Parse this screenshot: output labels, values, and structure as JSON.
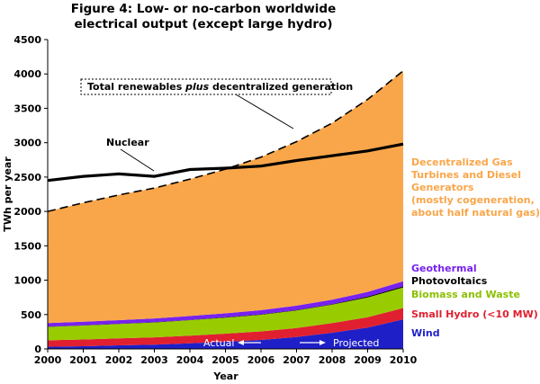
{
  "chart_data": {
    "type": "area",
    "title": [
      "Figure 4: Low- or no-carbon worldwide",
      "electrical output (except large hydro)"
    ],
    "xlabel": "Year",
    "ylabel": "TWh per year",
    "x": [
      2000,
      2001,
      2002,
      2003,
      2004,
      2005,
      2006,
      2007,
      2008,
      2009,
      2010
    ],
    "xlim": [
      2000,
      2010
    ],
    "ylim": [
      0,
      4500
    ],
    "yticks": [
      0,
      500,
      1000,
      1500,
      2000,
      2500,
      3000,
      3500,
      4000,
      4500
    ],
    "grid": false,
    "stacked_series": [
      {
        "name": "Wind",
        "color": "#1f1fc8",
        "label_lines": [
          "Wind"
        ],
        "values": [
          31,
          39,
          52,
          63,
          82,
          104,
          131,
          173,
          235,
          310,
          430
        ]
      },
      {
        "name": "Small Hydro (<10 MW)",
        "color": "#e02030",
        "label_lines": [
          "Small Hydro (<10 MW)"
        ],
        "values": [
          95,
          99,
          102,
          106,
          112,
          118,
          124,
          132,
          140,
          152,
          165
        ]
      },
      {
        "name": "Biomass and Waste",
        "color": "#99cc00",
        "label_lines": [
          "Biomass and Waste"
        ],
        "values": [
          195,
          202,
          208,
          216,
          224,
          232,
          242,
          254,
          268,
          288,
          300
        ]
      },
      {
        "name": "Photovoltaics",
        "color": "#000000",
        "label_lines": [
          "Photovoltaics"
        ],
        "values": [
          4,
          4,
          4,
          5,
          5,
          6,
          7,
          8,
          9,
          12,
          15
        ]
      },
      {
        "name": "Geothermal",
        "color": "#7722ee",
        "label_lines": [
          "Geothermal"
        ],
        "values": [
          50,
          52,
          53,
          54,
          56,
          58,
          60,
          62,
          64,
          68,
          75
        ]
      },
      {
        "name": "Decentralized Gas Turbines and Diesel Generators",
        "color": "#f9a64a",
        "label_lines": [
          "Decentralized Gas",
          "Turbines and Diesel",
          "Generators",
          "(mostly cogeneration,",
          "about half natural gas)"
        ],
        "values": [
          1625,
          1730,
          1821,
          1896,
          1991,
          2097,
          2226,
          2386,
          2569,
          2800,
          3060
        ]
      }
    ],
    "line_series": [
      {
        "name": "Nuclear",
        "color": "#000000",
        "style": "solid",
        "values": [
          2450,
          2510,
          2545,
          2510,
          2610,
          2630,
          2660,
          2740,
          2810,
          2880,
          2980
        ]
      },
      {
        "name": "Total renewables plus decentralized generation",
        "color": "#000000",
        "style": "dashed",
        "values": [
          2000,
          2126,
          2240,
          2340,
          2470,
          2615,
          2790,
          3015,
          3285,
          3630,
          4045
        ]
      }
    ],
    "annotations": {
      "total_box": {
        "pre": "Total renewables ",
        "italic": "plus",
        "post": " decentralized generation"
      },
      "nuclear": "Nuclear",
      "actual": "Actual",
      "projected": "Projected"
    }
  }
}
